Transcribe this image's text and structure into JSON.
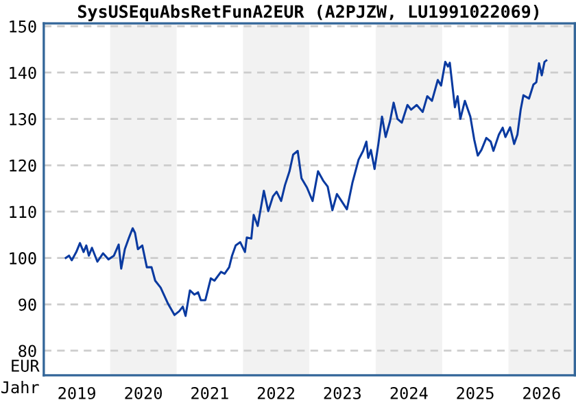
{
  "chart_data": {
    "type": "line",
    "title": "SysUSEquAbsRetFunA2EUR (A2PJZW, LU1991022069)",
    "xlabel": "Jahr",
    "ylabel": "EUR",
    "xlim": [
      "2019-01-01",
      "2027-01-01"
    ],
    "xticks": [
      {
        "value": "2019-07-02",
        "label": "2019"
      },
      {
        "value": "2020-07-02",
        "label": "2020"
      },
      {
        "value": "2021-07-02",
        "label": "2021"
      },
      {
        "value": "2022-07-02",
        "label": "2022"
      },
      {
        "value": "2023-07-02",
        "label": "2023"
      },
      {
        "value": "2024-07-02",
        "label": "2024"
      },
      {
        "value": "2025-07-02",
        "label": "2025"
      },
      {
        "value": "2026-07-02",
        "label": "2026"
      }
    ],
    "ylim": [
      74.7,
      150.6
    ],
    "yticks": [
      80,
      90,
      100,
      110,
      120,
      130,
      140,
      150
    ],
    "grid": "y",
    "line_style": "solid",
    "bands": [
      {
        "axis": "x",
        "from": "2020-01-01",
        "to": "2021-01-01",
        "color": "#f2f2f2"
      },
      {
        "axis": "x",
        "from": "2022-01-01",
        "to": "2023-01-01",
        "color": "#f2f2f2"
      },
      {
        "axis": "x",
        "from": "2024-01-01",
        "to": "2025-01-01",
        "color": "#f2f2f2"
      },
      {
        "axis": "x",
        "from": "2026-01-01",
        "to": "2027-01-01",
        "color": "#f2f2f2"
      }
    ],
    "series": [
      {
        "color": "#0a3aa0",
        "x": [
          "2019-05-02",
          "2019-05-20",
          "2019-06-04",
          "2019-06-29",
          "2019-07-19",
          "2019-08-08",
          "2019-08-23",
          "2019-09-06",
          "2019-09-23",
          "2019-10-23",
          "2019-11-23",
          "2019-12-23",
          "2020-01-22",
          "2020-02-17",
          "2020-03-02",
          "2020-03-22",
          "2020-04-14",
          "2020-05-04",
          "2020-05-17",
          "2020-06-02",
          "2020-06-26",
          "2020-07-21",
          "2020-08-16",
          "2020-09-05",
          "2020-10-05",
          "2020-11-15",
          "2020-12-20",
          "2021-01-15",
          "2021-02-04",
          "2021-02-19",
          "2021-03-15",
          "2021-04-09",
          "2021-04-29",
          "2021-05-14",
          "2021-06-08",
          "2021-07-08",
          "2021-07-28",
          "2021-09-02",
          "2021-09-22",
          "2021-10-17",
          "2021-11-02",
          "2021-11-22",
          "2021-12-17",
          "2022-01-12",
          "2022-01-22",
          "2022-02-16",
          "2022-03-01",
          "2022-03-23",
          "2022-04-26",
          "2022-05-20",
          "2022-06-15",
          "2022-07-05",
          "2022-07-30",
          "2022-08-20",
          "2022-09-14",
          "2022-10-04",
          "2022-10-29",
          "2022-11-19",
          "2022-12-19",
          "2023-01-19",
          "2023-02-18",
          "2023-03-18",
          "2023-04-12",
          "2023-05-08",
          "2023-06-02",
          "2023-06-27",
          "2023-07-27",
          "2023-08-26",
          "2023-09-29",
          "2023-10-24",
          "2023-11-11",
          "2023-11-21",
          "2023-12-06",
          "2023-12-26",
          "2024-01-16",
          "2024-02-05",
          "2024-02-25",
          "2024-03-20",
          "2024-04-09",
          "2024-04-30",
          "2024-05-24",
          "2024-06-24",
          "2024-07-14",
          "2024-08-14",
          "2024-09-16",
          "2024-10-11",
          "2024-11-06",
          "2024-12-08",
          "2024-12-26",
          "2025-01-18",
          "2025-02-02",
          "2025-02-12",
          "2025-03-02",
          "2025-03-12",
          "2025-03-27",
          "2025-04-11",
          "2025-05-06",
          "2025-06-05",
          "2025-06-26",
          "2025-07-16",
          "2025-08-05",
          "2025-09-01",
          "2025-09-25",
          "2025-10-10",
          "2025-11-09",
          "2025-11-30",
          "2025-12-15",
          "2026-01-10",
          "2026-02-01",
          "2026-02-19",
          "2026-03-09",
          "2026-03-24",
          "2026-04-24",
          "2026-05-18",
          "2026-06-03",
          "2026-06-18",
          "2026-07-03",
          "2026-07-18",
          "2026-07-28"
        ],
        "values": [
          100.0,
          100.5,
          99.5,
          101.3,
          103.2,
          101.3,
          102.7,
          100.5,
          102.2,
          99.2,
          101.0,
          99.7,
          100.5,
          102.9,
          97.7,
          101.9,
          104.4,
          106.4,
          105.4,
          101.9,
          102.7,
          98.0,
          98.0,
          95.1,
          93.6,
          90.1,
          87.7,
          88.5,
          89.5,
          87.5,
          93.0,
          92.1,
          92.6,
          90.9,
          90.9,
          95.6,
          95.1,
          97.0,
          96.6,
          98.0,
          100.5,
          102.7,
          103.4,
          101.3,
          104.4,
          104.2,
          109.3,
          106.9,
          114.5,
          110.1,
          113.3,
          114.3,
          112.3,
          115.7,
          118.7,
          122.3,
          123.1,
          117.2,
          115.2,
          112.3,
          118.7,
          116.7,
          115.4,
          110.3,
          113.8,
          112.3,
          110.5,
          116.2,
          121.2,
          123.1,
          125.1,
          121.6,
          123.3,
          119.2,
          124.6,
          130.5,
          126.1,
          129.5,
          133.5,
          130.0,
          129.2,
          133.0,
          132.0,
          133.0,
          131.5,
          134.9,
          133.9,
          138.4,
          137.2,
          142.3,
          141.3,
          142.1,
          135.9,
          132.5,
          134.9,
          130.0,
          133.9,
          130.5,
          125.6,
          122.1,
          123.3,
          125.9,
          125.1,
          123.1,
          126.6,
          128.1,
          126.1,
          128.2,
          124.6,
          126.6,
          132.0,
          135.1,
          134.4,
          137.4,
          137.9,
          142.0,
          139.4,
          142.3,
          142.6
        ]
      }
    ]
  }
}
